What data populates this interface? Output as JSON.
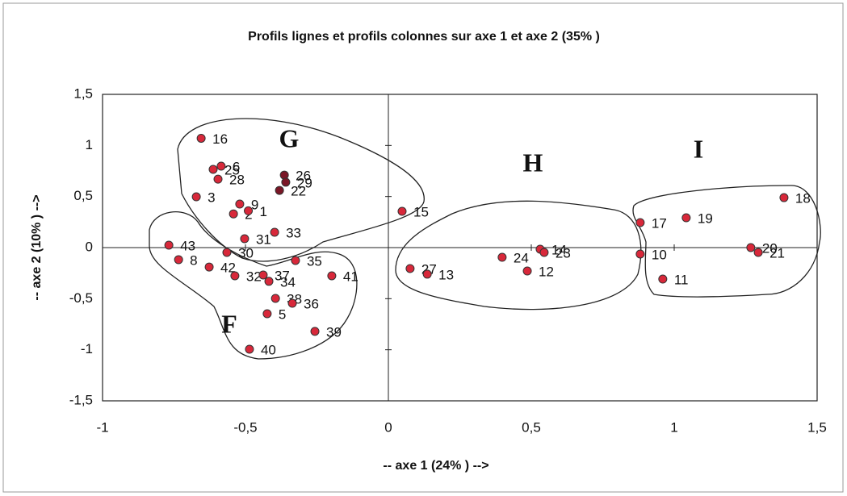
{
  "chart_data": {
    "type": "scatter",
    "title": "Profils lignes et profils colonnes sur axe 1 et axe 2 (35% )",
    "x_label": "-- axe 1 (24% ) -->",
    "y_label": "-- axe 2 (10% ) -->",
    "xlim": [
      -1,
      1.5
    ],
    "xticks": [
      -1,
      {
        "value": -0.5,
        "label": "-0,5"
      },
      0,
      {
        "value": 0.5,
        "label": "0,5"
      },
      1,
      {
        "value": 1.5,
        "label": "1,5"
      }
    ],
    "ylim": [
      -1.5,
      1.5
    ],
    "yticks": [
      {
        "value": -1.5,
        "label": "-1,5"
      },
      -1,
      {
        "value": -0.5,
        "label": "-0,5"
      },
      0,
      {
        "value": 0.5,
        "label": "0,5"
      },
      1,
      {
        "value": 1.5,
        "label": "1,5"
      }
    ],
    "annotations": [
      "G",
      "H",
      "I",
      "F"
    ],
    "series": [
      {
        "color": "#d8283a",
        "labels": [
          "16",
          "25",
          "6",
          "28",
          "3",
          "9",
          "2",
          "1",
          "31",
          "33",
          "15",
          "43",
          "8",
          "30",
          "42",
          "32",
          "37",
          "34",
          "35",
          "41",
          "38",
          "36",
          "5",
          "39",
          "40",
          "27",
          "13",
          "24",
          "14",
          "23",
          "12",
          "17",
          "10",
          "19",
          "18",
          "20",
          "21",
          "11"
        ],
        "x": [
          -0.655,
          -0.613,
          -0.585,
          -0.596,
          -0.672,
          -0.52,
          -0.542,
          -0.49,
          -0.503,
          -0.398,
          0.048,
          -0.768,
          -0.734,
          -0.565,
          -0.627,
          -0.537,
          -0.438,
          -0.418,
          -0.325,
          -0.198,
          -0.395,
          -0.336,
          -0.424,
          -0.257,
          -0.486,
          0.076,
          0.136,
          0.398,
          0.531,
          0.545,
          0.486,
          0.881,
          0.881,
          1.042,
          1.384,
          1.268,
          1.294,
          0.96
        ],
        "values": [
          1.07,
          0.766,
          0.797,
          0.67,
          0.497,
          0.426,
          0.33,
          0.36,
          0.087,
          0.15,
          0.355,
          0.024,
          -0.118,
          -0.047,
          -0.19,
          -0.276,
          -0.268,
          -0.33,
          -0.126,
          -0.276,
          -0.497,
          -0.545,
          -0.647,
          -0.82,
          -0.995,
          -0.205,
          -0.26,
          -0.095,
          -0.016,
          -0.047,
          -0.229,
          0.245,
          -0.063,
          0.292,
          0.489,
          0.0,
          -0.047,
          -0.308
        ]
      },
      {
        "color": "#7a1626",
        "labels": [
          "26",
          "29",
          "22"
        ],
        "x": [
          -0.364,
          -0.359,
          -0.381
        ],
        "values": [
          0.71,
          0.64,
          0.56
        ]
      }
    ]
  }
}
